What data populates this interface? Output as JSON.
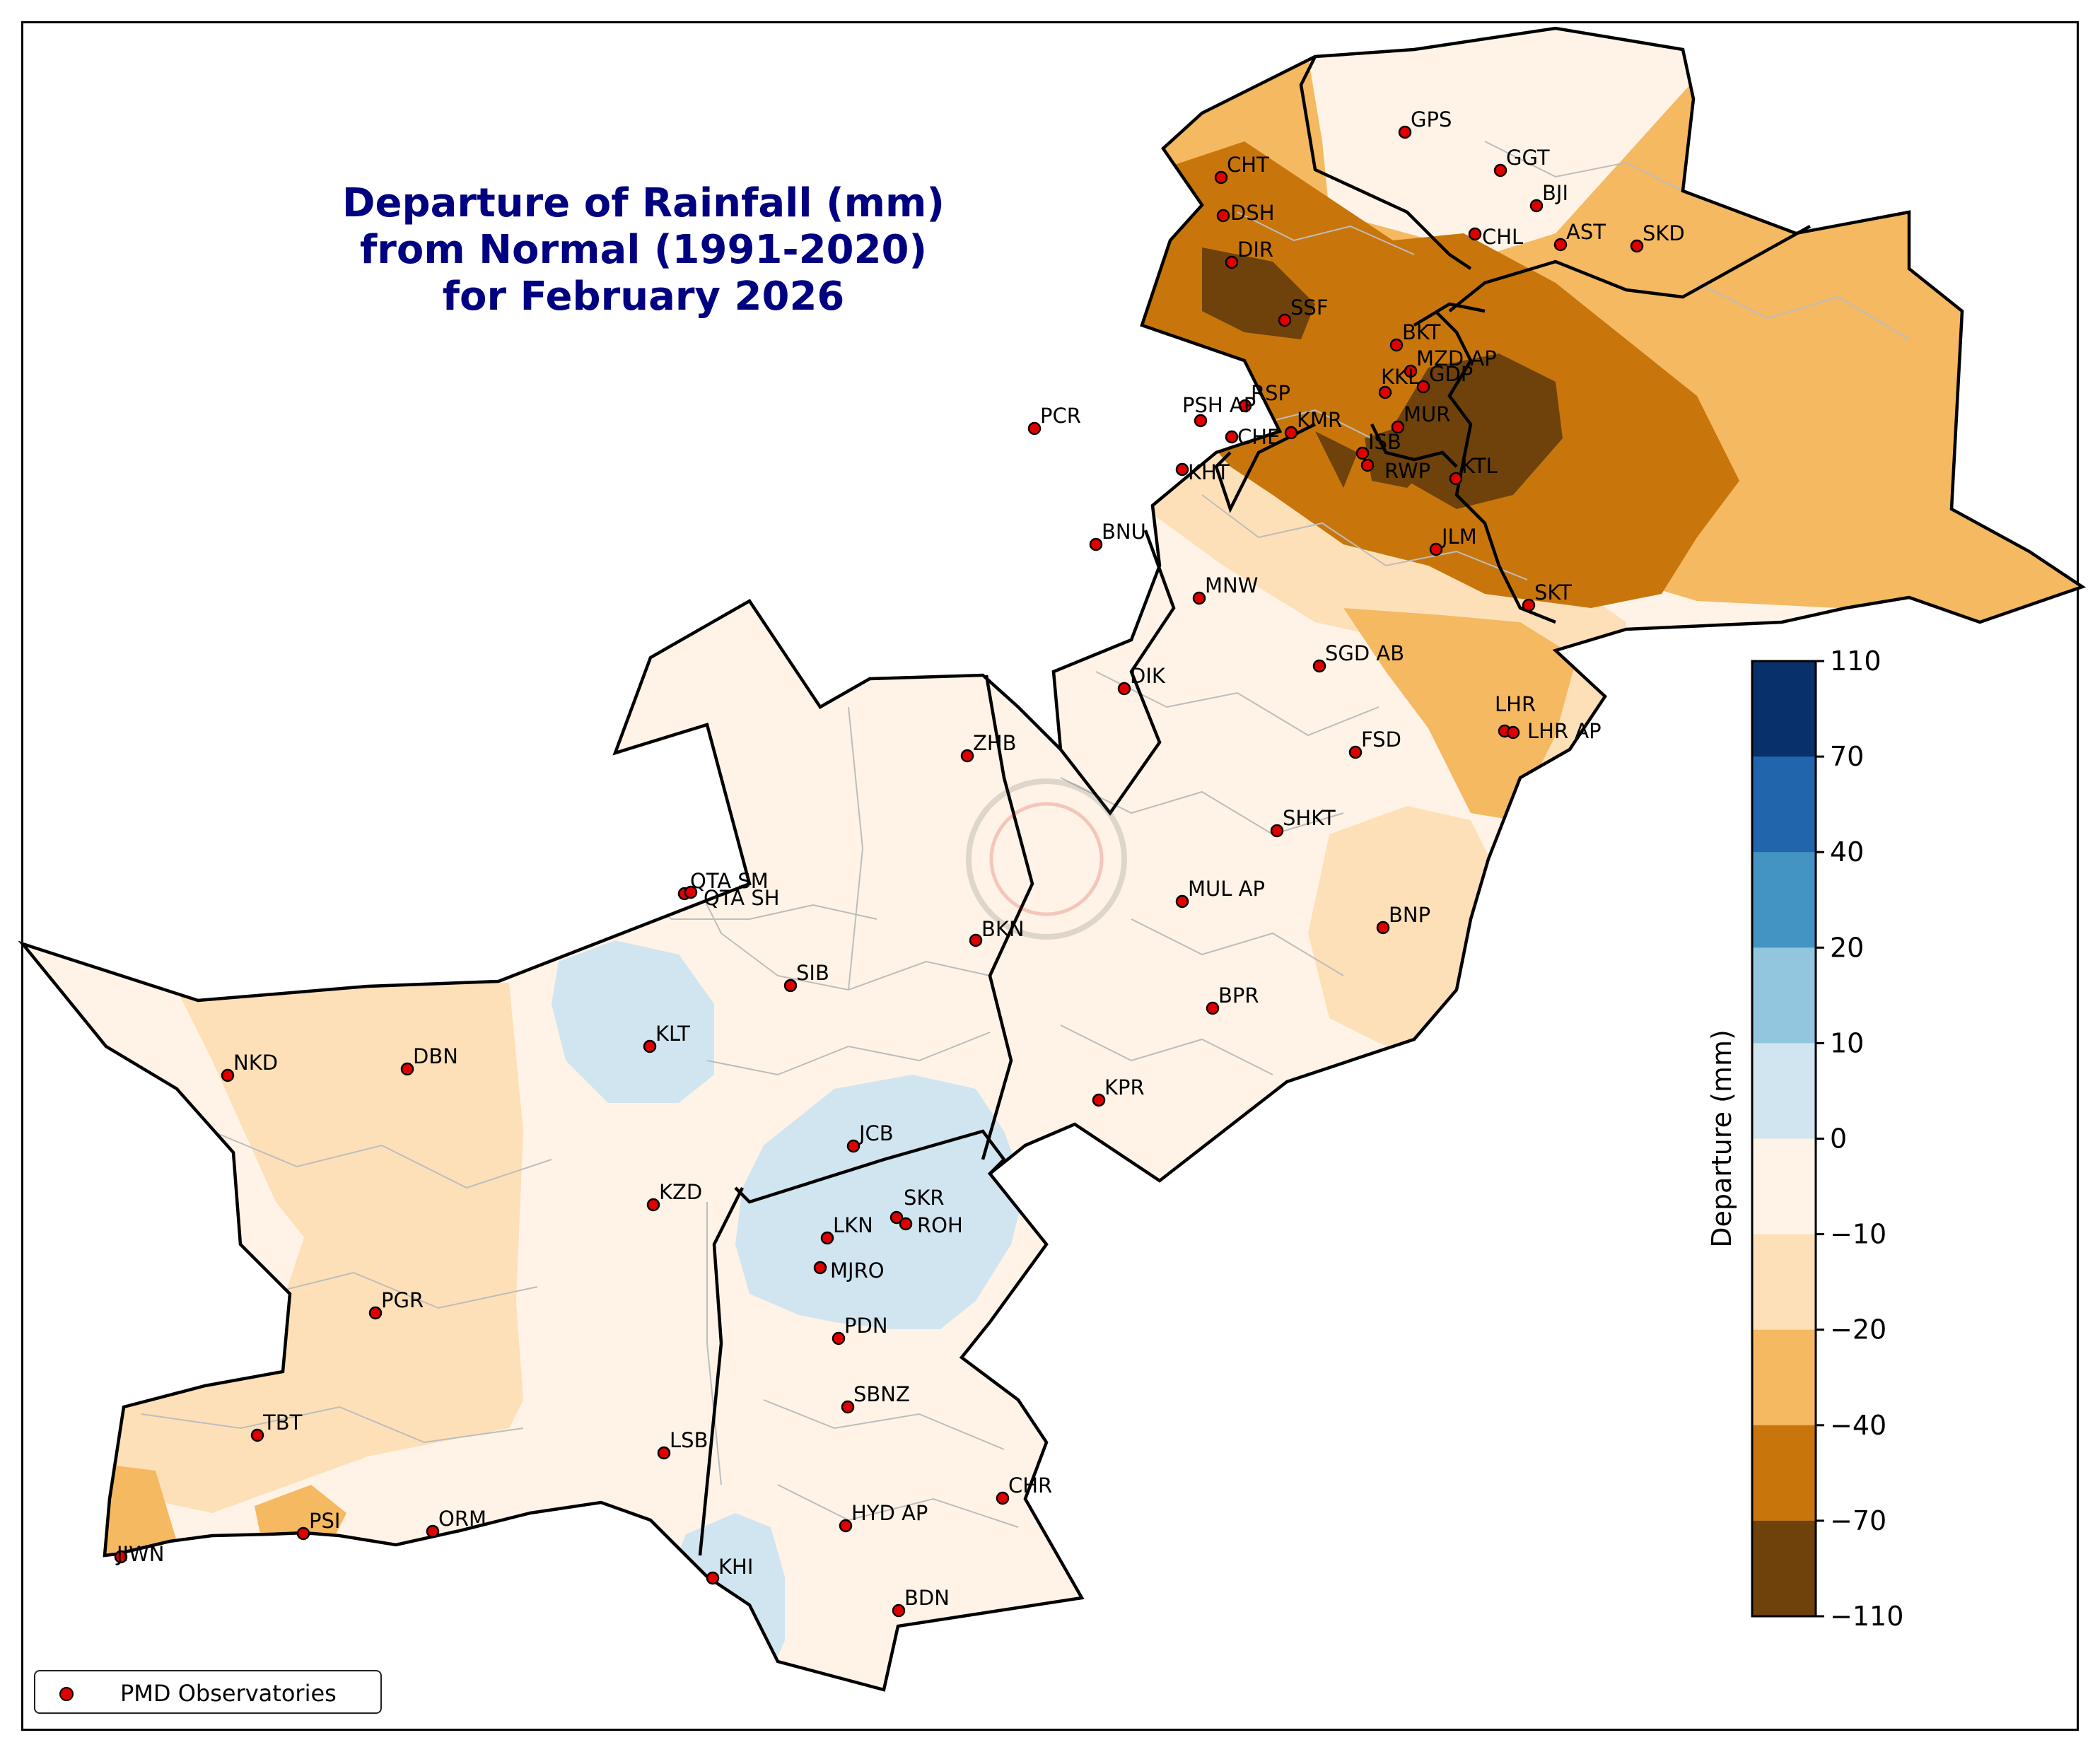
{
  "title": {
    "line1": "Departure of Rainfall (mm)",
    "line2": "from Normal (1991-2020)",
    "line3": "for February 2026"
  },
  "legend": {
    "label": "PMD Observatories",
    "marker_color": "#e00000"
  },
  "colorbar": {
    "label": "Departure (mm)",
    "ticks": [
      "110",
      "70",
      "40",
      "20",
      "10",
      "0",
      "−10",
      "−20",
      "−40",
      "−70",
      "−110"
    ],
    "colors": [
      "#08306b",
      "#2166ac",
      "#4393c3",
      "#92c5de",
      "#d1e5f0",
      "#fef3e6",
      "#fde0b8",
      "#f5b962",
      "#c8760c",
      "#6e420a"
    ]
  },
  "stations": [
    {
      "name": "GPS"
    },
    {
      "name": "GGT"
    },
    {
      "name": "BJI"
    },
    {
      "name": "CHT"
    },
    {
      "name": "DSH"
    },
    {
      "name": "CHL"
    },
    {
      "name": "AST"
    },
    {
      "name": "SKD"
    },
    {
      "name": "DIR"
    },
    {
      "name": "SSF"
    },
    {
      "name": "BKT"
    },
    {
      "name": "MZD AP"
    },
    {
      "name": "RSP"
    },
    {
      "name": "KKL"
    },
    {
      "name": "GDP"
    },
    {
      "name": "PCR"
    },
    {
      "name": "PSH AP"
    },
    {
      "name": "CHE"
    },
    {
      "name": "KMR"
    },
    {
      "name": "MUR"
    },
    {
      "name": "ISB"
    },
    {
      "name": "RWP"
    },
    {
      "name": "KTL"
    },
    {
      "name": "KHT"
    },
    {
      "name": "BNU"
    },
    {
      "name": "JLM"
    },
    {
      "name": "MNW"
    },
    {
      "name": "SKT"
    },
    {
      "name": "SGD AB"
    },
    {
      "name": "DIK"
    },
    {
      "name": "LHR"
    },
    {
      "name": "LHR AP"
    },
    {
      "name": "ZHB"
    },
    {
      "name": "FSD"
    },
    {
      "name": "SHKT"
    },
    {
      "name": "QTA SM"
    },
    {
      "name": "QTA SH"
    },
    {
      "name": "MUL AP"
    },
    {
      "name": "BKN"
    },
    {
      "name": "BNP"
    },
    {
      "name": "SIB"
    },
    {
      "name": "BPR"
    },
    {
      "name": "KLT"
    },
    {
      "name": "NKD"
    },
    {
      "name": "DBN"
    },
    {
      "name": "KPR"
    },
    {
      "name": "JCB"
    },
    {
      "name": "KZD"
    },
    {
      "name": "SKR"
    },
    {
      "name": "LKN"
    },
    {
      "name": "ROH"
    },
    {
      "name": "MJRO"
    },
    {
      "name": "PGR"
    },
    {
      "name": "PDN"
    },
    {
      "name": "SBNZ"
    },
    {
      "name": "TBT"
    },
    {
      "name": "LSB"
    },
    {
      "name": "CHR"
    },
    {
      "name": "HYD AP"
    },
    {
      "name": "PSI"
    },
    {
      "name": "ORM"
    },
    {
      "name": "JIWN"
    },
    {
      "name": "KHI"
    },
    {
      "name": "BDN"
    }
  ]
}
